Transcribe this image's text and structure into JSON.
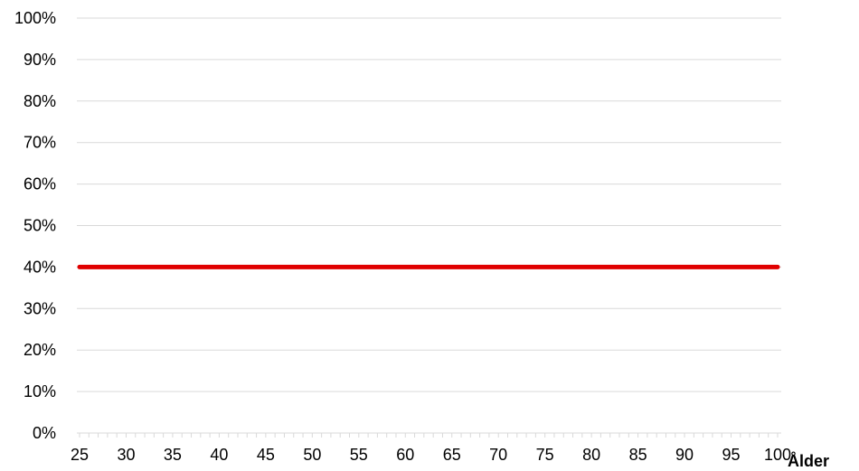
{
  "chart_data": {
    "type": "line",
    "title": "",
    "xlabel": "Ålder",
    "ylabel": "",
    "xlim": [
      25,
      100
    ],
    "ylim": [
      0,
      100
    ],
    "x_ticks": [
      25,
      30,
      35,
      40,
      45,
      50,
      55,
      60,
      65,
      70,
      75,
      80,
      85,
      90,
      95,
      100
    ],
    "y_ticks": [
      "0%",
      "10%",
      "20%",
      "30%",
      "40%",
      "50%",
      "60%",
      "70%",
      "80%",
      "90%",
      "100%"
    ],
    "y_tick_values": [
      0,
      10,
      20,
      30,
      40,
      50,
      60,
      70,
      80,
      90,
      100
    ],
    "grid": true,
    "minor_x_ticks": true,
    "series": [
      {
        "x": [
          25,
          100
        ],
        "y": [
          40,
          40
        ],
        "color": "#e00000"
      }
    ]
  }
}
